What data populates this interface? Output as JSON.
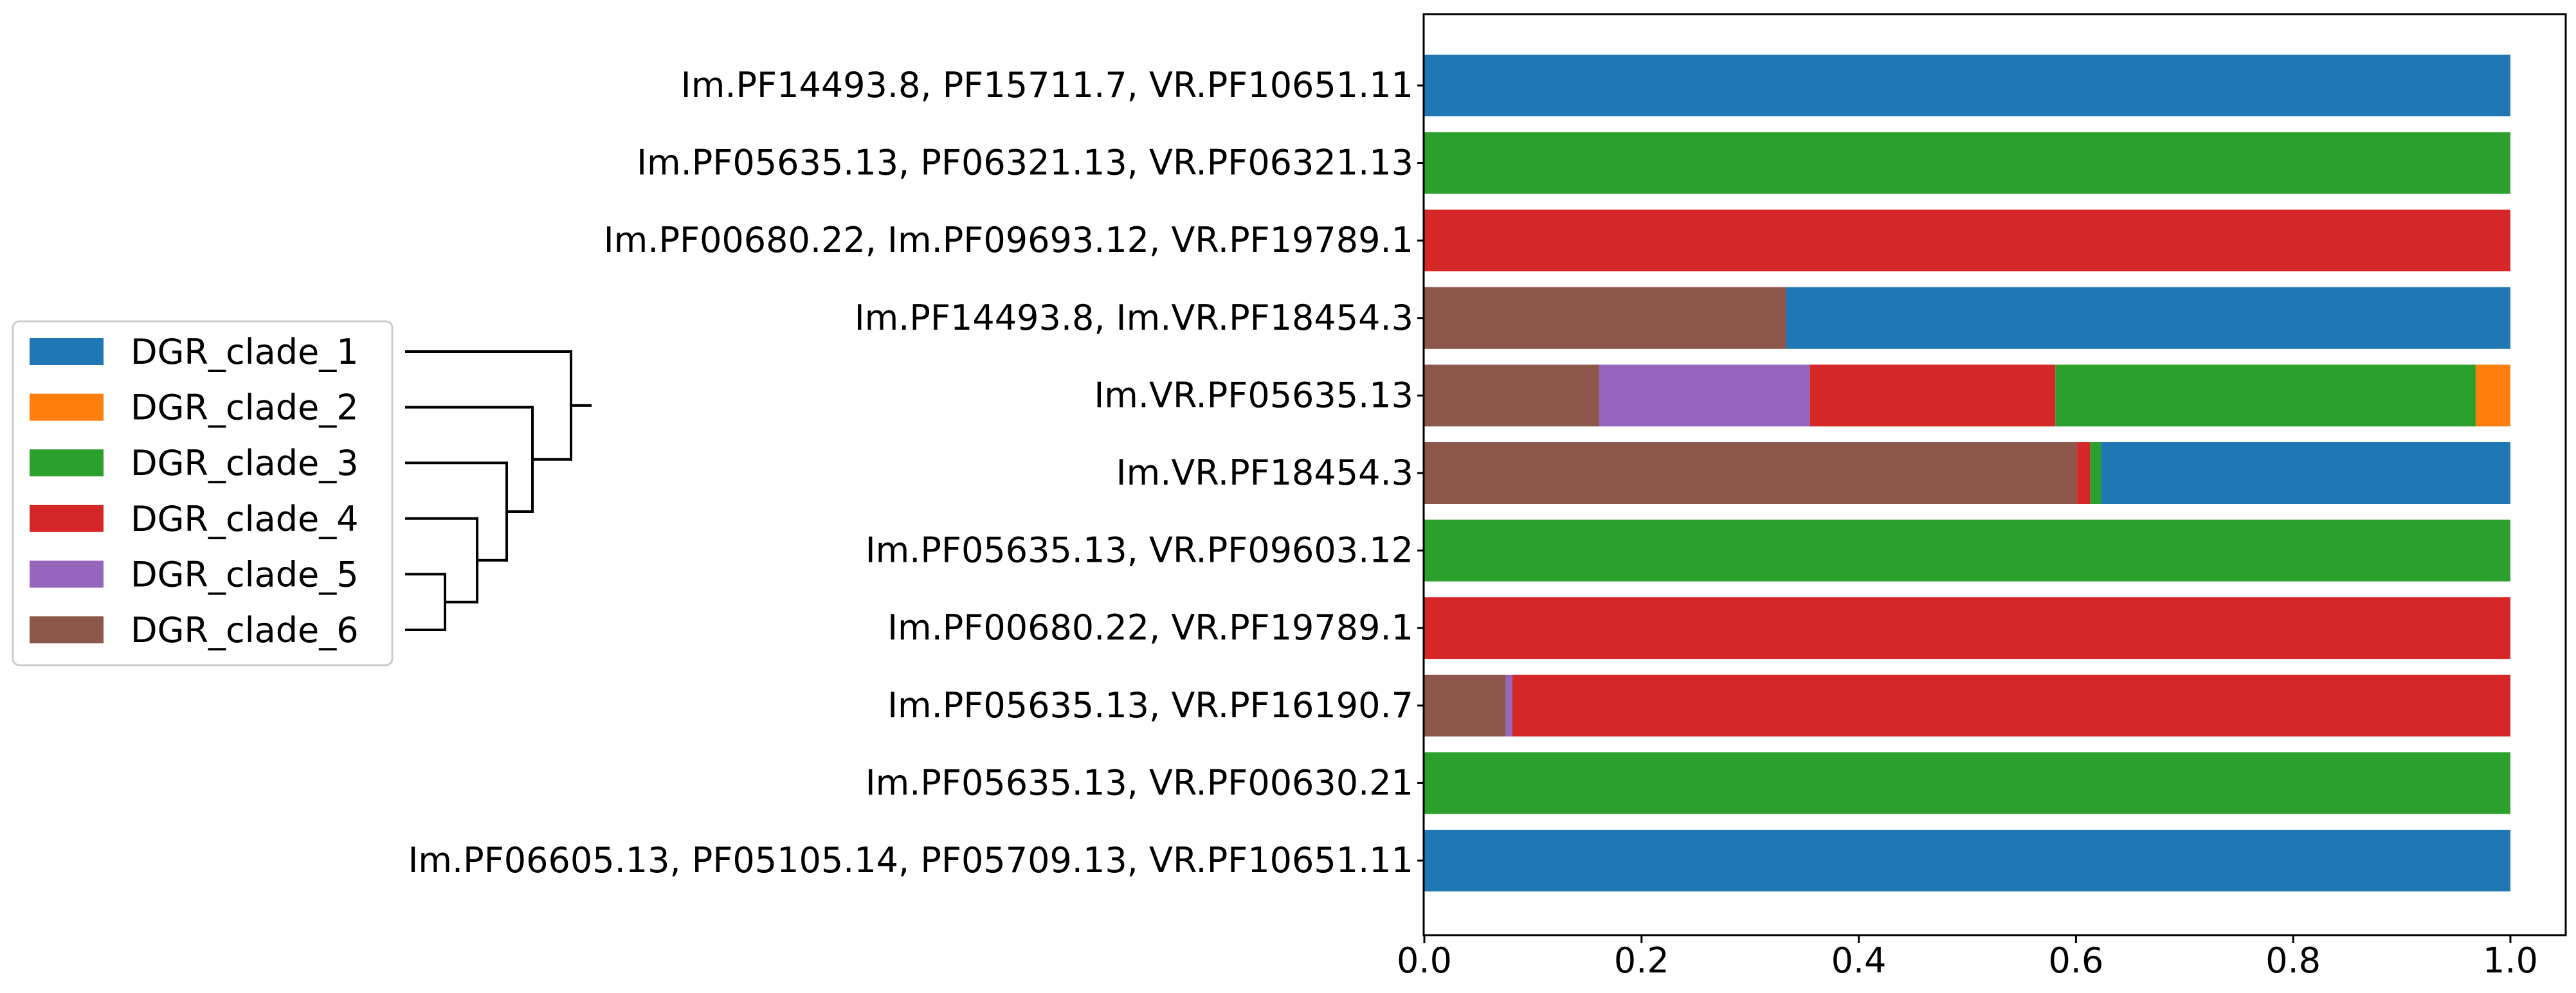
{
  "chart_data": {
    "type": "bar",
    "orientation": "horizontal",
    "stacked": true,
    "title": "",
    "xlabel": "",
    "ylabel": "",
    "xlim": [
      0.0,
      1.04
    ],
    "xticks": [
      0.0,
      0.2,
      0.4,
      0.6,
      0.8,
      1.0
    ],
    "xtick_labels": [
      "0.0",
      "0.2",
      "0.4",
      "0.6",
      "0.8",
      "1.0"
    ],
    "grid": false,
    "legend_position": "center-left",
    "categories": [
      "Im.PF14493.8, PF15711.7, VR.PF10651.11",
      "Im.PF05635.13, PF06321.13, VR.PF06321.13",
      "Im.PF00680.22, Im.PF09693.12, VR.PF19789.1",
      "Im.PF14493.8, Im.VR.PF18454.3",
      "Im.VR.PF05635.13",
      "Im.VR.PF18454.3",
      "Im.PF05635.13, VR.PF09603.12",
      "Im.PF00680.22, VR.PF19789.1",
      "Im.PF05635.13, VR.PF16190.7",
      "Im.PF05635.13, VR.PF00630.21",
      "Im.PF06605.13, PF05105.14, PF05709.13, VR.PF10651.11"
    ],
    "stack_order": [
      "DGR_clade_6",
      "DGR_clade_5",
      "DGR_clade_4",
      "DGR_clade_3",
      "DGR_clade_2",
      "DGR_clade_1"
    ],
    "series": [
      {
        "name": "DGR_clade_1",
        "color": "#1f77b4",
        "values": [
          1.0,
          0,
          0,
          0.667,
          0,
          0.377,
          0,
          0,
          0,
          0,
          1.0
        ]
      },
      {
        "name": "DGR_clade_2",
        "color": "#ff7f0e",
        "values": [
          0,
          0,
          0,
          0,
          0.032,
          0,
          0,
          0,
          0,
          0,
          0
        ]
      },
      {
        "name": "DGR_clade_3",
        "color": "#2ca02c",
        "values": [
          0,
          1.0,
          0,
          0,
          0.387,
          0.01,
          1.0,
          0,
          0,
          1.0,
          0
        ]
      },
      {
        "name": "DGR_clade_4",
        "color": "#d62728",
        "values": [
          0,
          0,
          1.0,
          0,
          0.226,
          0.012,
          0,
          1.0,
          0.919,
          0,
          0
        ]
      },
      {
        "name": "DGR_clade_5",
        "color": "#9467bd",
        "values": [
          0,
          0,
          0,
          0,
          0.194,
          0,
          0,
          0,
          0.006,
          0,
          0
        ]
      },
      {
        "name": "DGR_clade_6",
        "color": "#8c564b",
        "values": [
          0,
          0,
          0,
          0.333,
          0.161,
          0.601,
          0,
          0,
          0.075,
          0,
          0
        ]
      }
    ],
    "legend": {
      "entries": [
        "DGR_clade_1",
        "DGR_clade_2",
        "DGR_clade_3",
        "DGR_clade_4",
        "DGR_clade_5",
        "DGR_clade_6"
      ],
      "dendrogram": "((1,((3,(4,(5,6))),2)))"
    }
  }
}
